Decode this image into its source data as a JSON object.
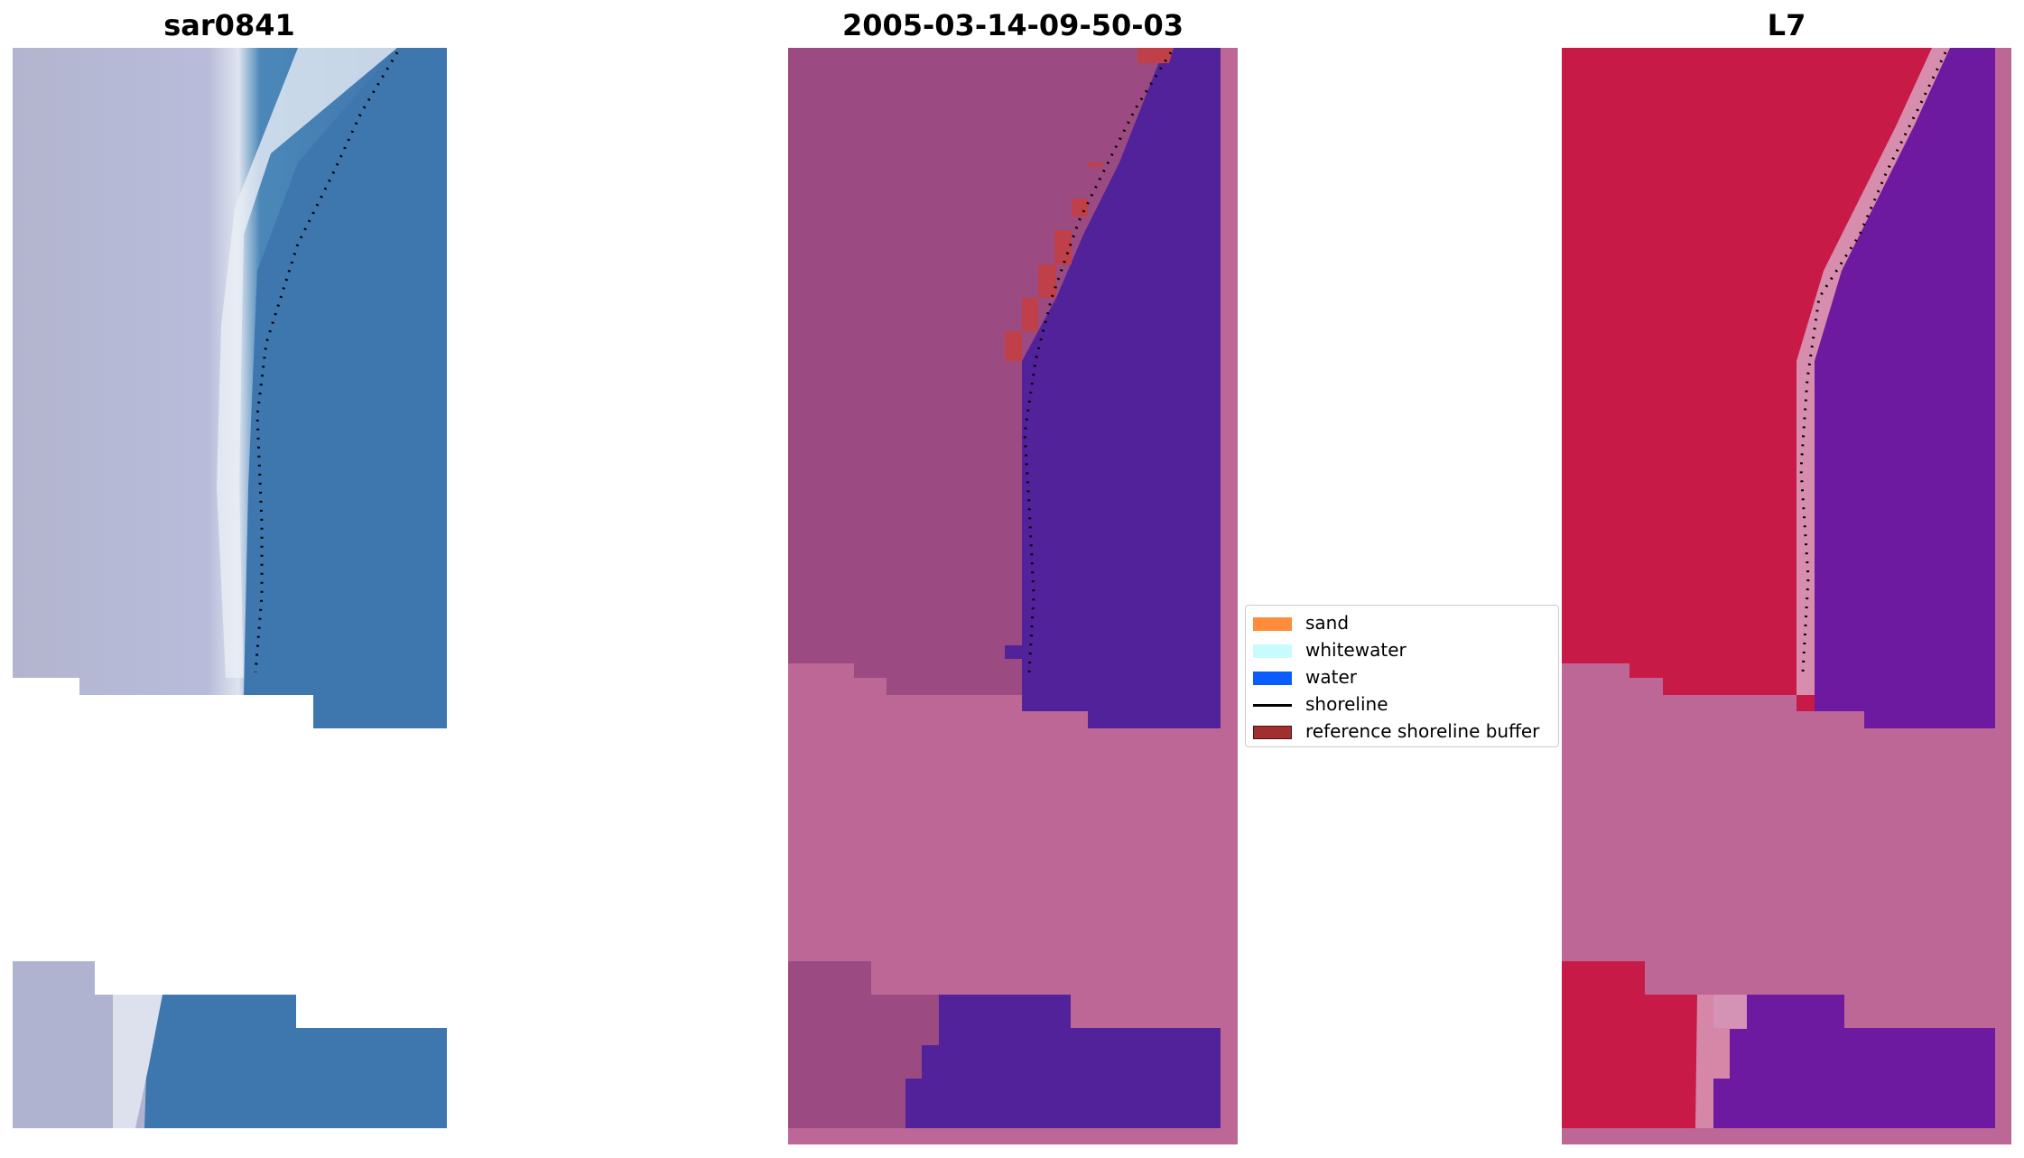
{
  "panels": [
    {
      "title": "sar0841"
    },
    {
      "title": "2005-03-14-09-50-03"
    },
    {
      "title": "L7"
    }
  ],
  "legend": {
    "items": [
      {
        "label": "sand",
        "color": "#ff8c3a",
        "kind": "patch"
      },
      {
        "label": "whitewater",
        "color": "#c8fcfc",
        "kind": "patch"
      },
      {
        "label": "water",
        "color": "#0a5cff",
        "kind": "patch"
      },
      {
        "label": "shoreline",
        "color": "#000000",
        "kind": "line"
      },
      {
        "label": "reference shoreline buffer",
        "color": "#a03030",
        "kind": "patch"
      }
    ]
  },
  "colors": {
    "rgb_water": "#3f78b0",
    "rgb_land": "#b3b5cf",
    "rgb_beach": "#eef2f6",
    "classified_land": "#9c4a82",
    "classified_water": "#52229a",
    "classified_nodata": "#bd6797",
    "classified_buffer": "#c0404a",
    "ndwi_land": "#c81a46",
    "ndwi_water": "#6e1aa0",
    "ndwi_nodata": "#bd6797"
  }
}
